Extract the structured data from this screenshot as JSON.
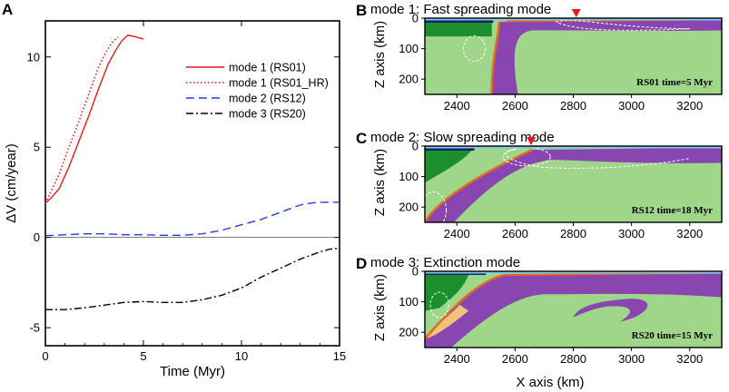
{
  "figure": {
    "panel_letters": [
      "A",
      "B",
      "C",
      "D"
    ]
  },
  "chart_data": {
    "type": "line",
    "xlabel": "Time (Myr)",
    "ylabel": "ΔV (cm/year)",
    "xlim": [
      0,
      15
    ],
    "ylim": [
      -6,
      12
    ],
    "xticks": [
      "0",
      "5",
      "10",
      "15"
    ],
    "yticks": [
      "-5",
      "0",
      "5",
      "10"
    ],
    "legend_position": "top-right",
    "series": [
      {
        "name": "mode 1 (RS01)",
        "color": "#e8191b",
        "style": "solid",
        "x": [
          0,
          0.3,
          0.7,
          1.2,
          1.7,
          2.2,
          2.7,
          3.2,
          3.6,
          3.9,
          4.2,
          4.5,
          4.8,
          5.0
        ],
        "y": [
          1.9,
          2.2,
          2.7,
          3.9,
          5.3,
          6.7,
          8.2,
          9.6,
          10.4,
          10.9,
          11.2,
          11.15,
          11.05,
          11.0
        ]
      },
      {
        "name": "mode 1 (RS01_HR)",
        "color": "#e8191b",
        "style": "dotted",
        "x": [
          0,
          0.3,
          0.7,
          1.2,
          1.7,
          2.2,
          2.7,
          3.0,
          3.4,
          3.7
        ],
        "y": [
          1.9,
          2.6,
          3.5,
          5.0,
          6.4,
          7.9,
          9.4,
          10.1,
          10.8,
          11.1
        ]
      },
      {
        "name": "mode 2 (RS12)",
        "color": "#1e3fe6",
        "style": "dashed",
        "x": [
          0,
          1,
          2,
          3,
          4,
          5,
          6,
          7,
          8,
          9,
          10,
          11,
          12,
          13,
          13.5,
          14,
          15
        ],
        "y": [
          0.1,
          0.15,
          0.2,
          0.2,
          0.15,
          0.15,
          0.12,
          0.12,
          0.2,
          0.4,
          0.7,
          1.0,
          1.4,
          1.8,
          1.9,
          1.95,
          1.95
        ]
      },
      {
        "name": "mode 3 (RS20)",
        "color": "#000000",
        "style": "dashdot",
        "x": [
          0,
          1,
          2,
          3,
          4,
          5,
          6,
          7,
          8,
          9,
          10,
          11,
          12,
          13,
          14,
          14.5,
          15
        ],
        "y": [
          -4.0,
          -4.0,
          -3.9,
          -3.75,
          -3.6,
          -3.55,
          -3.6,
          -3.6,
          -3.45,
          -3.2,
          -2.8,
          -2.2,
          -1.7,
          -1.2,
          -0.8,
          -0.65,
          -0.6
        ]
      }
    ]
  },
  "models": [
    {
      "letter": "B",
      "title": "mode 1: Fast spreading mode",
      "label": "RS01  time=5 Myr",
      "marker_x_km": 2810,
      "slab_top_km": [
        2520,
        2545
      ],
      "slab_bottom_km": [
        2580,
        2610
      ]
    },
    {
      "letter": "C",
      "title": "mode 2: Slow spreading mode",
      "label": "RS12  time=18 Myr",
      "marker_x_km": 2655,
      "slab_top_km": [
        2290,
        2660
      ],
      "slab_bottom_km": [
        2390,
        2720
      ]
    },
    {
      "letter": "D",
      "title": "mode 3: Extinction mode",
      "label": "RS20  time=15 Myr",
      "marker_x_km": null,
      "slab_top_km": [
        2290,
        2560
      ],
      "slab_bottom_km": [
        2350,
        2640
      ]
    }
  ],
  "model_axes": {
    "xlabel": "X axis (km)",
    "ylabel": "Z axis (km)",
    "xlim": [
      2290,
      3310
    ],
    "zlim": [
      0,
      250
    ],
    "xticks": [
      "2400",
      "2600",
      "2800",
      "3000",
      "3200"
    ],
    "zticks": [
      "0",
      "100",
      "200"
    ],
    "colors": {
      "mantle": "#9fd68a",
      "slab": "#8a46b0",
      "deep_ocean": "#14206e",
      "continent": "#1a8f2b",
      "water": "#7ecbe8",
      "orange": "#e46b1e",
      "sediment": "#f2c27a",
      "marker": "#e41a1c"
    }
  }
}
